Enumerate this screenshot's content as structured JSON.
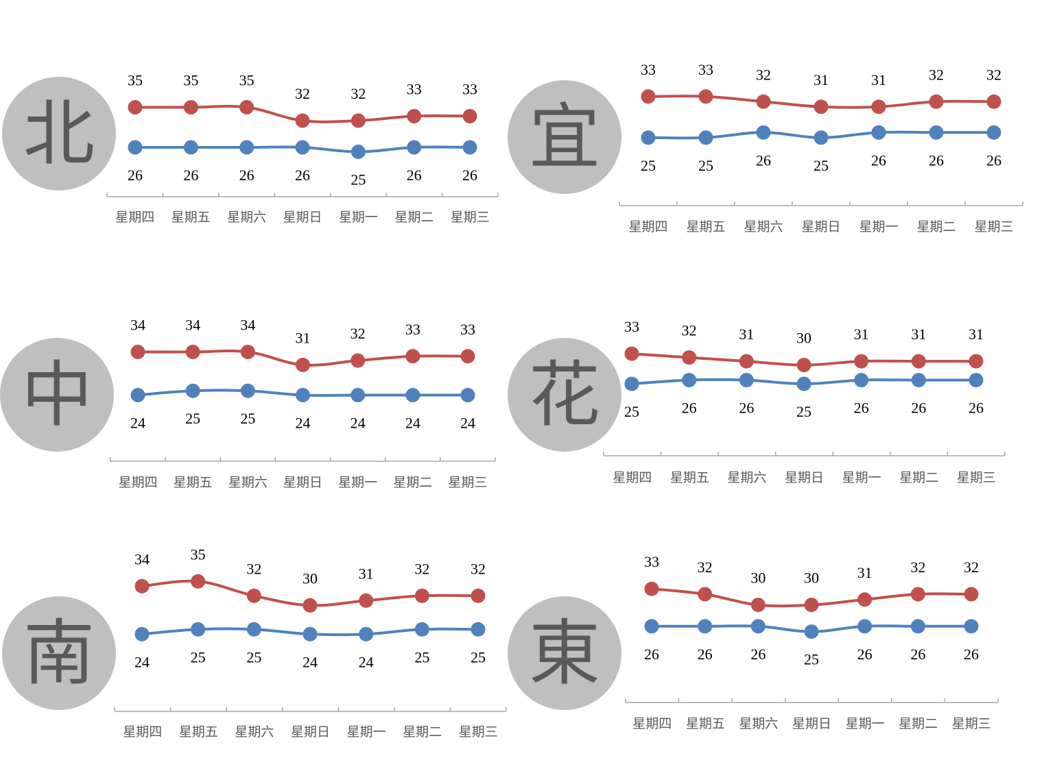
{
  "colors": {
    "high": "#C0504D",
    "low": "#4F81BD",
    "circle": "#bfbfbf",
    "circle_text": "#595959",
    "axis": "#a6a6a6"
  },
  "chart_data": [
    {
      "type": "line",
      "region": "北",
      "categories": [
        "星期四",
        "星期五",
        "星期六",
        "星期日",
        "星期一",
        "星期二",
        "星期三"
      ],
      "series": [
        {
          "values": [
            35,
            35,
            35,
            32,
            32,
            33,
            33
          ]
        },
        {
          "values": [
            26,
            26,
            26,
            26,
            25,
            26,
            26
          ]
        }
      ]
    },
    {
      "type": "line",
      "region": "宜",
      "categories": [
        "星期四",
        "星期五",
        "星期六",
        "星期日",
        "星期一",
        "星期二",
        "星期三"
      ],
      "series": [
        {
          "values": [
            33,
            33,
            32,
            31,
            31,
            32,
            32
          ]
        },
        {
          "values": [
            25,
            25,
            26,
            25,
            26,
            26,
            26
          ]
        }
      ]
    },
    {
      "type": "line",
      "region": "中",
      "categories": [
        "星期四",
        "星期五",
        "星期六",
        "星期日",
        "星期一",
        "星期二",
        "星期三"
      ],
      "series": [
        {
          "values": [
            34,
            34,
            34,
            31,
            32,
            33,
            33
          ]
        },
        {
          "values": [
            24,
            25,
            25,
            24,
            24,
            24,
            24
          ]
        }
      ]
    },
    {
      "type": "line",
      "region": "花",
      "categories": [
        "星期四",
        "星期五",
        "星期六",
        "星期日",
        "星期一",
        "星期二",
        "星期三"
      ],
      "series": [
        {
          "values": [
            33,
            32,
            31,
            30,
            31,
            31,
            31
          ]
        },
        {
          "values": [
            25,
            26,
            26,
            25,
            26,
            26,
            26
          ]
        }
      ]
    },
    {
      "type": "line",
      "region": "南",
      "categories": [
        "星期四",
        "星期五",
        "星期六",
        "星期日",
        "星期一",
        "星期二",
        "星期三"
      ],
      "series": [
        {
          "values": [
            34,
            35,
            32,
            30,
            31,
            32,
            32
          ]
        },
        {
          "values": [
            24,
            25,
            25,
            24,
            24,
            25,
            25
          ]
        }
      ]
    },
    {
      "type": "line",
      "region": "東",
      "categories": [
        "星期四",
        "星期五",
        "星期六",
        "星期日",
        "星期一",
        "星期二",
        "星期三"
      ],
      "series": [
        {
          "values": [
            33,
            32,
            30,
            30,
            31,
            32,
            32
          ]
        },
        {
          "values": [
            26,
            26,
            26,
            25,
            26,
            26,
            26
          ]
        }
      ]
    }
  ]
}
